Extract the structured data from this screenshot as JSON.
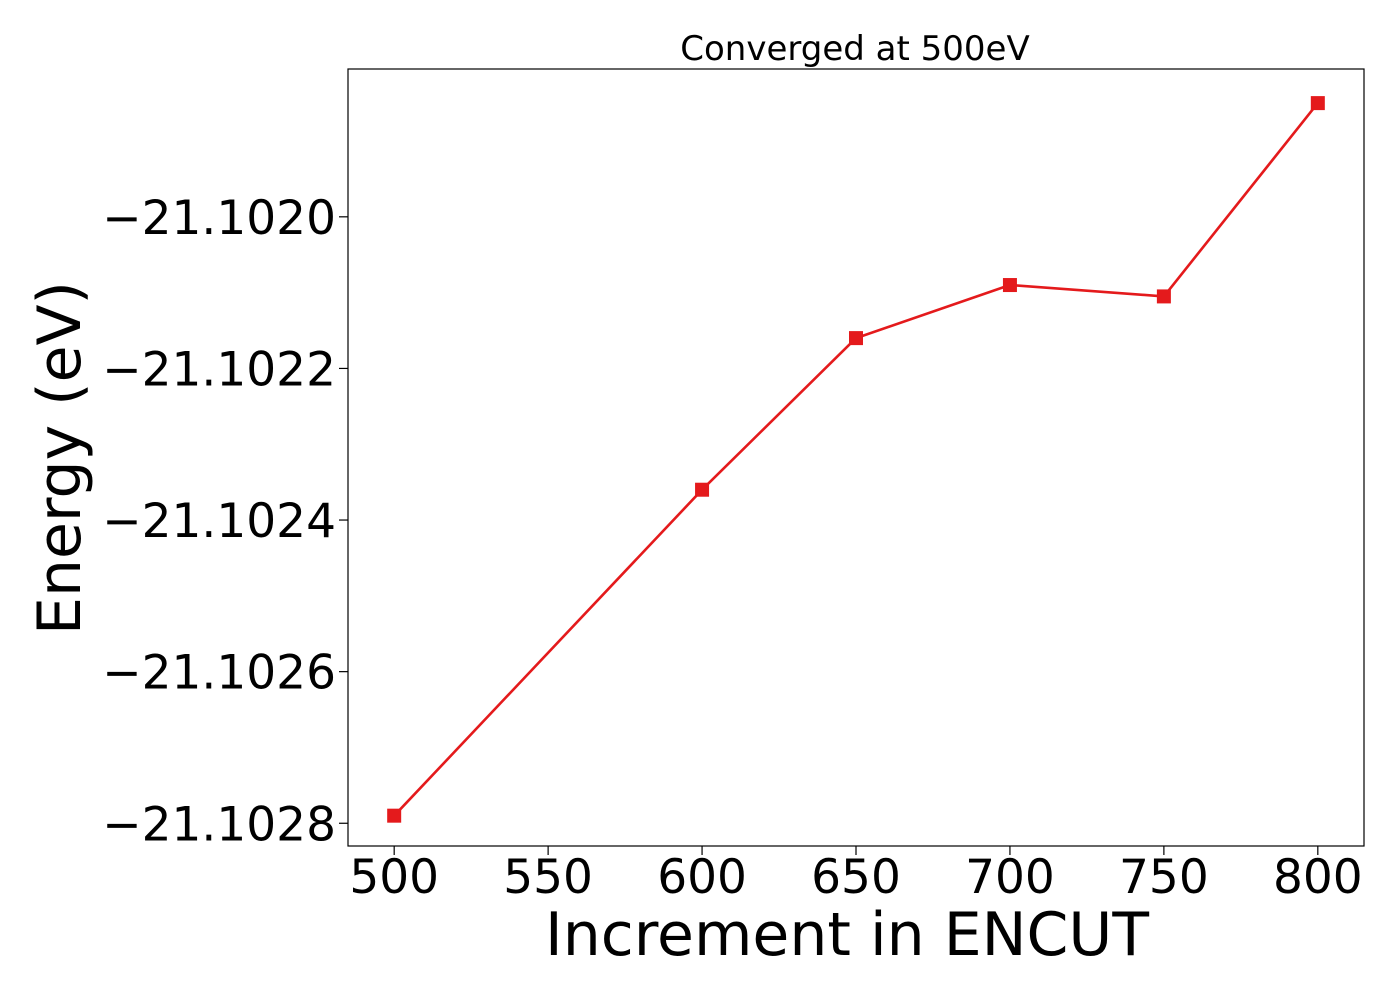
{
  "chart_data": {
    "type": "line",
    "title": "Converged at 500eV",
    "xlabel": "Increment in ENCUT",
    "ylabel": "Energy (eV)",
    "x": [
      500,
      600,
      650,
      700,
      750,
      800
    ],
    "series": [
      {
        "values": [
          -21.10279,
          -21.10236,
          -21.10216,
          -21.10209,
          -21.102105,
          -21.10185
        ],
        "color": "#e41a1c",
        "marker": "square"
      }
    ],
    "xlim": [
      485,
      815
    ],
    "ylim": [
      -21.10283,
      -21.101805
    ],
    "xticks": [
      500,
      550,
      600,
      650,
      700,
      750,
      800
    ],
    "xtick_labels": [
      "500",
      "550",
      "600",
      "650",
      "700",
      "750",
      "800"
    ],
    "yticks": [
      -21.1028,
      -21.1026,
      -21.1024,
      -21.1022,
      -21.102
    ],
    "ytick_labels": [
      "−21.1028",
      "−21.1026",
      "−21.1024",
      "−21.1022",
      "−21.1020"
    ],
    "grid": false,
    "legend": "none"
  }
}
